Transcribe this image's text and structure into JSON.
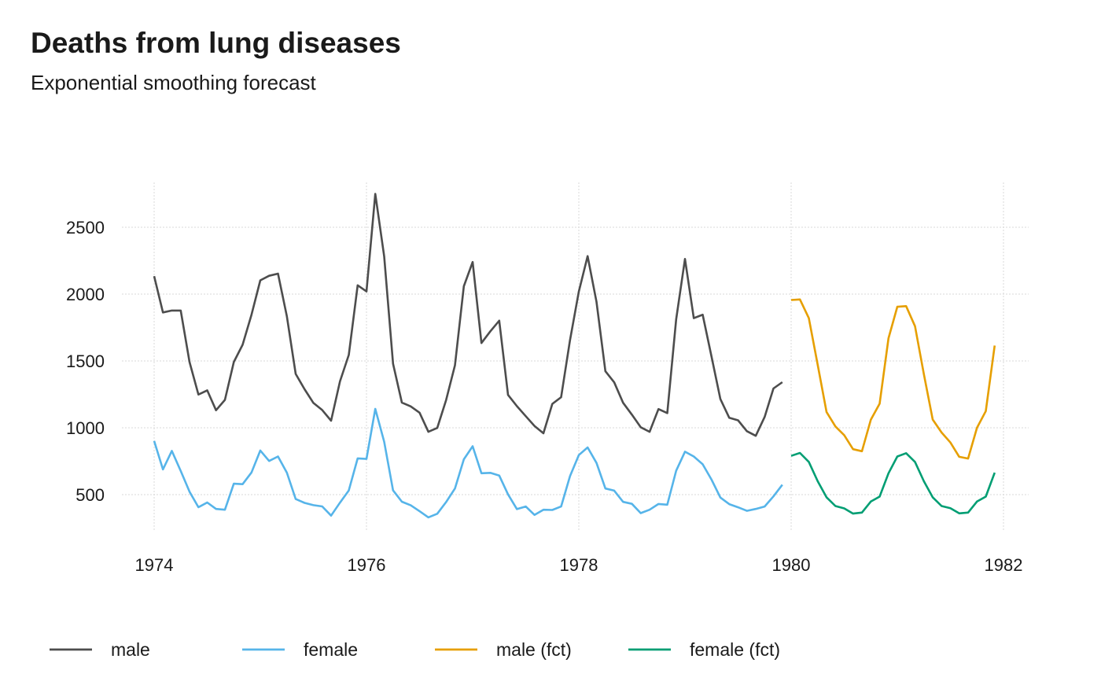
{
  "chart_data": {
    "type": "line",
    "title": "Deaths from lung diseases",
    "subtitle": "Exponential smoothing forecast",
    "xlabel": "",
    "ylabel": "",
    "xlim": [
      1974,
      1982
    ],
    "ylim": [
      200,
      2800
    ],
    "x_ticks": [
      1974,
      1976,
      1978,
      1980,
      1982
    ],
    "x_tick_labels": [
      "1974",
      "1976",
      "1978",
      "1980",
      "1982"
    ],
    "y_ticks": [
      500,
      1000,
      1500,
      2000,
      2500
    ],
    "y_tick_labels": [
      "500",
      "1000",
      "1500",
      "2000",
      "2500"
    ],
    "grid": true,
    "legend_position": "bottom",
    "series": [
      {
        "name": "male",
        "color": "#4d4d4d",
        "x_start": 1974,
        "step": 0.08333,
        "values": [
          2134,
          1863,
          1877,
          1877,
          1492,
          1249,
          1280,
          1131,
          1209,
          1492,
          1621,
          1846,
          2103,
          2137,
          2153,
          1833,
          1403,
          1288,
          1186,
          1133,
          1053,
          1347,
          1545,
          2066,
          2020,
          2750,
          2283,
          1479,
          1189,
          1160,
          1113,
          970,
          999,
          1208,
          1467,
          2059,
          2240,
          1634,
          1722,
          1801,
          1246,
          1162,
          1087,
          1013,
          959,
          1179,
          1229,
          1655,
          2019,
          2284,
          1942,
          1423,
          1340,
          1187,
          1098,
          1004,
          970,
          1140,
          1110,
          1812,
          2263,
          1820,
          1846,
          1531,
          1215,
          1075,
          1056,
          975,
          940,
          1081,
          1294,
          1341
        ]
      },
      {
        "name": "female",
        "color": "#56b4e9",
        "x_start": 1974,
        "step": 0.08333,
        "values": [
          901,
          689,
          827,
          677,
          522,
          406,
          441,
          393,
          387,
          582,
          578,
          666,
          830,
          752,
          785,
          664,
          467,
          438,
          421,
          412,
          343,
          440,
          531,
          771,
          767,
          1141,
          896,
          532,
          447,
          420,
          376,
          330,
          357,
          445,
          546,
          764,
          862,
          660,
          663,
          643,
          502,
          392,
          411,
          348,
          387,
          385,
          411,
          638,
          796,
          853,
          737,
          546,
          530,
          446,
          431,
          362,
          387,
          430,
          425,
          679,
          821,
          785,
          727,
          612,
          478,
          429,
          405,
          379,
          393,
          411,
          487,
          574
        ]
      },
      {
        "name": "male (fct)",
        "color": "#e69f00",
        "x_start": 1980,
        "step": 0.08333,
        "values": [
          1956,
          1960,
          1820,
          1470,
          1118,
          1010,
          945,
          840,
          825,
          1060,
          1180,
          1670,
          1905,
          1910,
          1760,
          1400,
          1062,
          965,
          890,
          783,
          770,
          1000,
          1125,
          1615
        ]
      },
      {
        "name": "female (fct)",
        "color": "#009e73",
        "x_start": 1980,
        "step": 0.08333,
        "values": [
          790,
          812,
          745,
          600,
          480,
          415,
          397,
          358,
          366,
          448,
          485,
          660,
          785,
          810,
          745,
          600,
          480,
          415,
          398,
          360,
          366,
          448,
          485,
          664
        ]
      }
    ]
  }
}
